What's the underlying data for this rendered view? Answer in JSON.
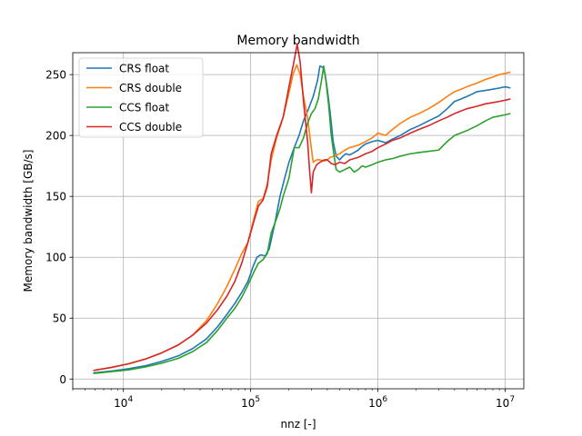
{
  "chart_data": {
    "type": "line",
    "title": "Memory bandwidth",
    "xlabel": "nnz [-]",
    "ylabel": "Memory bandwidth [GB/s]",
    "xscale": "log",
    "xlim": [
      4000,
      14000000
    ],
    "ylim": [
      -8,
      268
    ],
    "yticks": [
      0,
      50,
      100,
      150,
      200,
      250
    ],
    "xticks": [
      {
        "value": 10000,
        "base": "10",
        "exp": "4"
      },
      {
        "value": 100000,
        "base": "10",
        "exp": "5"
      },
      {
        "value": 1000000,
        "base": "10",
        "exp": "6"
      },
      {
        "value": 10000000,
        "base": "10",
        "exp": "7"
      }
    ],
    "grid": true,
    "legend_position": "top-left",
    "series": [
      {
        "name": "CRS float",
        "color": "#1f77b4",
        "points": [
          [
            5800,
            5
          ],
          [
            8000,
            6.5
          ],
          [
            11000,
            8.5
          ],
          [
            15000,
            11
          ],
          [
            20000,
            14.5
          ],
          [
            27000,
            19
          ],
          [
            35000,
            25
          ],
          [
            45000,
            33
          ],
          [
            55000,
            43
          ],
          [
            65000,
            53
          ],
          [
            75000,
            62
          ],
          [
            85000,
            71
          ],
          [
            95000,
            80
          ],
          [
            105000,
            93
          ],
          [
            112000,
            100
          ],
          [
            120000,
            102
          ],
          [
            130000,
            101
          ],
          [
            140000,
            107
          ],
          [
            155000,
            128
          ],
          [
            170000,
            150
          ],
          [
            185000,
            165
          ],
          [
            200000,
            178
          ],
          [
            220000,
            190
          ],
          [
            240000,
            200
          ],
          [
            260000,
            212
          ],
          [
            285000,
            222
          ],
          [
            310000,
            232
          ],
          [
            335000,
            245
          ],
          [
            350000,
            257
          ],
          [
            370000,
            256
          ],
          [
            385000,
            250
          ],
          [
            400000,
            238
          ],
          [
            420000,
            220
          ],
          [
            445000,
            195
          ],
          [
            470000,
            183
          ],
          [
            500000,
            180
          ],
          [
            530000,
            183
          ],
          [
            560000,
            185
          ],
          [
            600000,
            184
          ],
          [
            650000,
            186
          ],
          [
            700000,
            188
          ],
          [
            750000,
            191
          ],
          [
            800000,
            193
          ],
          [
            900000,
            195
          ],
          [
            1000000,
            196
          ],
          [
            1150000,
            194
          ],
          [
            1300000,
            197
          ],
          [
            1500000,
            200
          ],
          [
            1800000,
            205
          ],
          [
            2100000,
            208
          ],
          [
            2500000,
            212
          ],
          [
            3000000,
            216
          ],
          [
            3500000,
            222
          ],
          [
            4000000,
            228
          ],
          [
            4500000,
            230
          ],
          [
            5000000,
            232
          ],
          [
            5500000,
            234
          ],
          [
            6000000,
            236
          ],
          [
            7000000,
            237
          ],
          [
            8000000,
            238
          ],
          [
            9000000,
            239
          ],
          [
            10000000,
            240
          ],
          [
            11000000,
            239
          ]
        ]
      },
      {
        "name": "CRS double",
        "color": "#ff7f0e",
        "points": [
          [
            5800,
            7
          ],
          [
            8000,
            9.5
          ],
          [
            11000,
            12.5
          ],
          [
            15000,
            16.5
          ],
          [
            20000,
            21.5
          ],
          [
            27000,
            28
          ],
          [
            35000,
            36
          ],
          [
            45000,
            48
          ],
          [
            55000,
            62
          ],
          [
            65000,
            76
          ],
          [
            75000,
            90
          ],
          [
            85000,
            103
          ],
          [
            95000,
            112
          ],
          [
            105000,
            130
          ],
          [
            115000,
            146
          ],
          [
            125000,
            148
          ],
          [
            135000,
            160
          ],
          [
            145000,
            180
          ],
          [
            160000,
            198
          ],
          [
            180000,
            215
          ],
          [
            200000,
            235
          ],
          [
            215000,
            250
          ],
          [
            230000,
            258
          ],
          [
            245000,
            250
          ],
          [
            260000,
            232
          ],
          [
            280000,
            215
          ],
          [
            295000,
            195
          ],
          [
            310000,
            178
          ],
          [
            330000,
            180
          ],
          [
            350000,
            180
          ],
          [
            380000,
            179
          ],
          [
            400000,
            180
          ],
          [
            420000,
            182
          ],
          [
            450000,
            183
          ],
          [
            500000,
            185
          ],
          [
            550000,
            188
          ],
          [
            600000,
            190
          ],
          [
            700000,
            192
          ],
          [
            800000,
            195
          ],
          [
            900000,
            198
          ],
          [
            1000000,
            202
          ],
          [
            1150000,
            200
          ],
          [
            1300000,
            205
          ],
          [
            1500000,
            210
          ],
          [
            1800000,
            215
          ],
          [
            2100000,
            218
          ],
          [
            2500000,
            222
          ],
          [
            3000000,
            227
          ],
          [
            3500000,
            232
          ],
          [
            4000000,
            236
          ],
          [
            4500000,
            238
          ],
          [
            5000000,
            240
          ],
          [
            6000000,
            243
          ],
          [
            7000000,
            246
          ],
          [
            8000000,
            248
          ],
          [
            9000000,
            250
          ],
          [
            10000000,
            251
          ],
          [
            11000000,
            252
          ]
        ]
      },
      {
        "name": "CCS float",
        "color": "#2ca02c",
        "points": [
          [
            5800,
            4.5
          ],
          [
            8000,
            6
          ],
          [
            11000,
            7.5
          ],
          [
            15000,
            10
          ],
          [
            20000,
            13
          ],
          [
            27000,
            17
          ],
          [
            35000,
            22.5
          ],
          [
            45000,
            30
          ],
          [
            55000,
            40
          ],
          [
            65000,
            50
          ],
          [
            75000,
            58
          ],
          [
            85000,
            67
          ],
          [
            95000,
            77
          ],
          [
            105000,
            87
          ],
          [
            115000,
            95
          ],
          [
            125000,
            98
          ],
          [
            135000,
            103
          ],
          [
            145000,
            120
          ],
          [
            160000,
            132
          ],
          [
            170000,
            140
          ],
          [
            180000,
            150
          ],
          [
            200000,
            165
          ],
          [
            210000,
            178
          ],
          [
            220000,
            190
          ],
          [
            240000,
            190
          ],
          [
            260000,
            198
          ],
          [
            280000,
            210
          ],
          [
            300000,
            218
          ],
          [
            320000,
            222
          ],
          [
            340000,
            230
          ],
          [
            360000,
            245
          ],
          [
            375000,
            257
          ],
          [
            390000,
            245
          ],
          [
            410000,
            225
          ],
          [
            430000,
            200
          ],
          [
            450000,
            185
          ],
          [
            470000,
            172
          ],
          [
            500000,
            170
          ],
          [
            550000,
            172
          ],
          [
            600000,
            174
          ],
          [
            650000,
            170
          ],
          [
            700000,
            172
          ],
          [
            750000,
            175
          ],
          [
            800000,
            174
          ],
          [
            900000,
            176
          ],
          [
            1000000,
            178
          ],
          [
            1150000,
            180
          ],
          [
            1300000,
            181
          ],
          [
            1500000,
            183
          ],
          [
            1800000,
            185
          ],
          [
            2100000,
            186
          ],
          [
            2500000,
            187
          ],
          [
            3000000,
            188
          ],
          [
            3500000,
            195
          ],
          [
            4000000,
            200
          ],
          [
            5000000,
            204
          ],
          [
            6000000,
            208
          ],
          [
            7000000,
            212
          ],
          [
            8000000,
            215
          ],
          [
            9000000,
            216
          ],
          [
            10000000,
            217
          ],
          [
            11000000,
            218
          ]
        ]
      },
      {
        "name": "CCS double",
        "color": "#d62728",
        "points": [
          [
            5800,
            7
          ],
          [
            8000,
            9.5
          ],
          [
            11000,
            12.5
          ],
          [
            15000,
            16.5
          ],
          [
            20000,
            21.5
          ],
          [
            27000,
            28
          ],
          [
            35000,
            36
          ],
          [
            45000,
            46
          ],
          [
            55000,
            57
          ],
          [
            65000,
            68
          ],
          [
            75000,
            80
          ],
          [
            85000,
            95
          ],
          [
            95000,
            112
          ],
          [
            105000,
            128
          ],
          [
            115000,
            142
          ],
          [
            125000,
            147
          ],
          [
            135000,
            158
          ],
          [
            145000,
            185
          ],
          [
            160000,
            200
          ],
          [
            180000,
            215
          ],
          [
            200000,
            240
          ],
          [
            220000,
            262
          ],
          [
            232000,
            275
          ],
          [
            245000,
            260
          ],
          [
            260000,
            228
          ],
          [
            280000,
            195
          ],
          [
            290000,
            172
          ],
          [
            300000,
            153
          ],
          [
            310000,
            170
          ],
          [
            330000,
            176
          ],
          [
            350000,
            178
          ],
          [
            380000,
            180
          ],
          [
            400000,
            180
          ],
          [
            430000,
            177
          ],
          [
            460000,
            176
          ],
          [
            500000,
            178
          ],
          [
            550000,
            177
          ],
          [
            600000,
            180
          ],
          [
            700000,
            182
          ],
          [
            800000,
            185
          ],
          [
            900000,
            187
          ],
          [
            1000000,
            190
          ],
          [
            1150000,
            193
          ],
          [
            1300000,
            196
          ],
          [
            1500000,
            198
          ],
          [
            1800000,
            202
          ],
          [
            2100000,
            205
          ],
          [
            2500000,
            208
          ],
          [
            3000000,
            212
          ],
          [
            3500000,
            215
          ],
          [
            4000000,
            218
          ],
          [
            5000000,
            222
          ],
          [
            6000000,
            224
          ],
          [
            7000000,
            226
          ],
          [
            8000000,
            227
          ],
          [
            9000000,
            228
          ],
          [
            10000000,
            229
          ],
          [
            11000000,
            230
          ]
        ]
      }
    ]
  }
}
